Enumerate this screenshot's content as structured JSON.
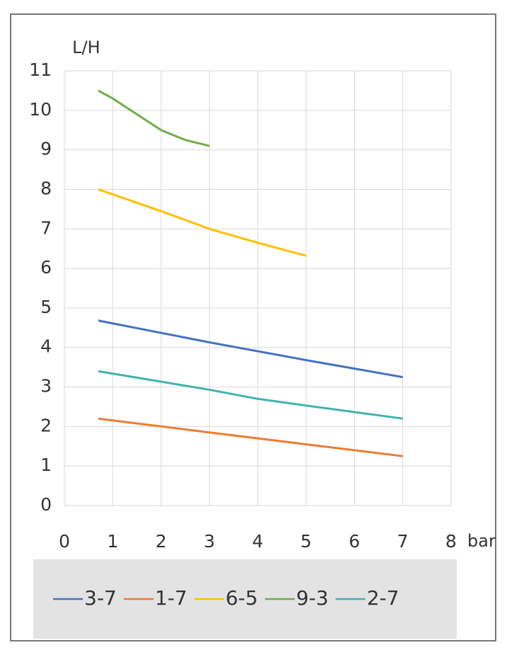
{
  "chart_data": {
    "type": "line",
    "y_label": "L/H",
    "x_label": "bar",
    "xlim": [
      0,
      8
    ],
    "xticks": [
      0,
      1,
      2,
      3,
      4,
      5,
      6,
      7,
      8
    ],
    "ylim": [
      0,
      11
    ],
    "yticks": [
      0,
      1,
      2,
      3,
      4,
      5,
      6,
      7,
      8,
      9,
      10,
      11
    ],
    "grid": true,
    "series": [
      {
        "name": "3-7",
        "color": "#4472c4",
        "x": [
          0.7,
          3,
          5,
          7
        ],
        "values": [
          4.68,
          4.13,
          3.68,
          3.25
        ]
      },
      {
        "name": "1-7",
        "color": "#ed7d31",
        "x": [
          0.7,
          3,
          5,
          7
        ],
        "values": [
          2.2,
          1.85,
          1.55,
          1.25
        ]
      },
      {
        "name": "6-5",
        "color": "#ffc000",
        "x": [
          0.7,
          2,
          3,
          4,
          5
        ],
        "values": [
          8.0,
          7.45,
          7.0,
          6.65,
          6.32
        ]
      },
      {
        "name": "9-3",
        "color": "#70ad47",
        "x": [
          0.7,
          1,
          2,
          2.5,
          3
        ],
        "values": [
          10.5,
          10.3,
          9.5,
          9.25,
          9.1
        ]
      },
      {
        "name": "2-7",
        "color": "#3fb3b0",
        "x": [
          0.7,
          3,
          4,
          5,
          7
        ],
        "values": [
          3.4,
          2.93,
          2.7,
          2.53,
          2.2
        ]
      }
    ]
  }
}
